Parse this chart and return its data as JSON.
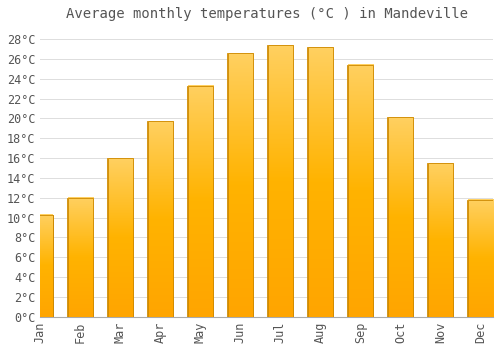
{
  "title": "Average monthly temperatures (°C ) in Mandeville",
  "months": [
    "Jan",
    "Feb",
    "Mar",
    "Apr",
    "May",
    "Jun",
    "Jul",
    "Aug",
    "Sep",
    "Oct",
    "Nov",
    "Dec"
  ],
  "values": [
    10.3,
    12.0,
    16.0,
    19.7,
    23.3,
    26.6,
    27.4,
    27.2,
    25.4,
    20.1,
    15.5,
    11.8
  ],
  "bar_color_top": "#FFA500",
  "bar_color_bottom": "#FFD060",
  "bar_edge_color": "#CC8800",
  "background_color": "#FFFFFF",
  "grid_color": "#DDDDDD",
  "text_color": "#555555",
  "ylim": [
    0,
    29
  ],
  "yticks": [
    0,
    2,
    4,
    6,
    8,
    10,
    12,
    14,
    16,
    18,
    20,
    22,
    24,
    26,
    28
  ],
  "title_fontsize": 10,
  "tick_fontsize": 8.5,
  "bar_width": 0.65
}
